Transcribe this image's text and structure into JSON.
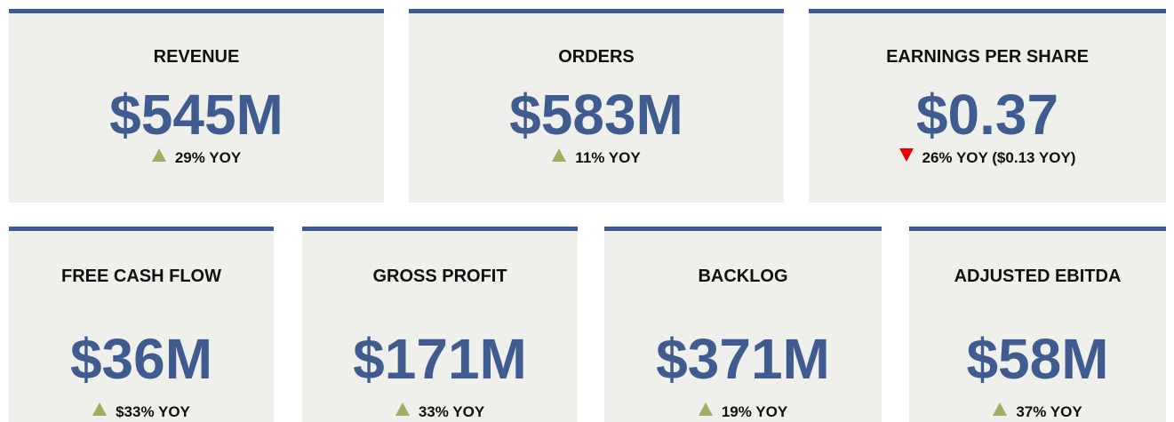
{
  "cards": [
    {
      "title": "REVENUE",
      "value": "$545M",
      "trend": "up",
      "change": "29% YOY"
    },
    {
      "title": "ORDERS",
      "value": "$583M",
      "trend": "up",
      "change": "11% YOY"
    },
    {
      "title": "EARNINGS PER SHARE",
      "value": "$0.37",
      "trend": "down",
      "change": "26% YOY ($0.13 YOY)"
    },
    {
      "title": "FREE CASH FLOW",
      "value": "$36M",
      "trend": "up",
      "change": "$33% YOY"
    },
    {
      "title": "GROSS PROFIT",
      "value": "$171M",
      "trend": "up",
      "change": "33% YOY"
    },
    {
      "title": "BACKLOG",
      "value": "$371M",
      "trend": "up",
      "change": "19% YOY"
    },
    {
      "title": "ADJUSTED EBITDA",
      "value": "$58M",
      "trend": "up",
      "change": "37% YOY"
    }
  ]
}
